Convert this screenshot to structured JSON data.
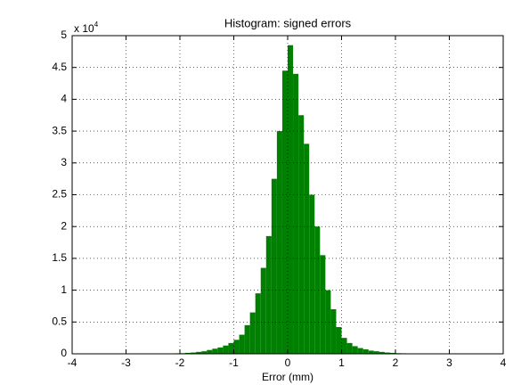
{
  "chart_data": {
    "type": "histogram",
    "title": "Histogram: signed errors",
    "x_label": "Error (mm)",
    "y_scale_base": "x 10",
    "y_scale_exponent": "4",
    "bins": [
      -2.2,
      -2.1,
      -2,
      -1.9,
      -1.8,
      -1.7,
      -1.6,
      -1.5,
      -1.4,
      -1.3,
      -1.2,
      -1.1,
      -1,
      -0.9,
      -0.8,
      -0.7,
      -0.6,
      -0.5,
      -0.4,
      -0.3,
      -0.2,
      -0.1,
      0,
      0.1,
      0.2,
      0.3,
      0.4,
      0.5,
      0.6,
      0.7,
      0.8,
      0.9,
      1,
      1.1,
      1.2,
      1.3,
      1.4,
      1.5,
      1.6,
      1.7,
      1.8,
      1.9,
      2,
      2.1,
      2.2,
      2.3
    ],
    "values": [
      0.005,
      0.008,
      0.01,
      0.015,
      0.02,
      0.03,
      0.04,
      0.06,
      0.08,
      0.1,
      0.13,
      0.17,
      0.22,
      0.3,
      0.45,
      0.65,
      0.95,
      1.35,
      1.85,
      2.75,
      3.5,
      4.45,
      4.85,
      4.4,
      3.75,
      3.3,
      2.5,
      2.0,
      1.55,
      1.0,
      0.7,
      0.42,
      0.25,
      0.17,
      0.12,
      0.09,
      0.07,
      0.05,
      0.04,
      0.03,
      0.02,
      0.015,
      0.01,
      0.008,
      0.005
    ],
    "color": "#008000",
    "xlim": [
      -4,
      4
    ],
    "xticks": [
      -4,
      -3,
      -2,
      -1,
      0,
      1,
      2,
      3,
      4
    ],
    "ylim": [
      0,
      5
    ],
    "yticks": [
      0,
      0.5,
      1,
      1.5,
      2,
      2.5,
      3,
      3.5,
      4,
      4.5,
      5
    ],
    "grid": true
  }
}
